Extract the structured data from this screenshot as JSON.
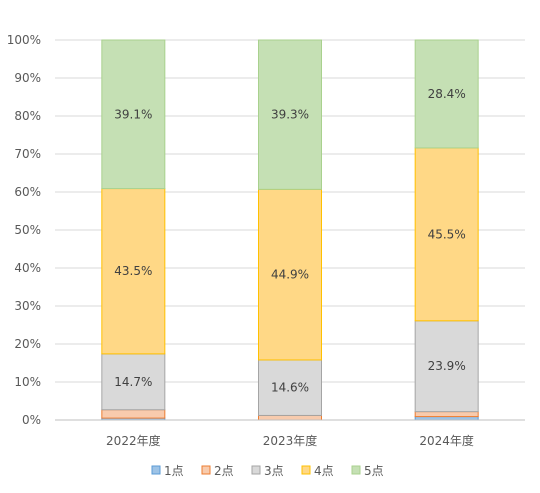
{
  "chart_data": {
    "type": "bar",
    "stacked": true,
    "percent": true,
    "categories": [
      "2022年度",
      "2023年度",
      "2024年度"
    ],
    "series": [
      {
        "name": "1点",
        "values": [
          0.5,
          0.0,
          0.9
        ],
        "labels": [
          "",
          "",
          ""
        ],
        "fill": "#9dc3e6",
        "stroke": "#5b9bd5"
      },
      {
        "name": "2点",
        "values": [
          2.2,
          1.2,
          1.3
        ],
        "labels": [
          "",
          "",
          ""
        ],
        "fill": "#f8cbad",
        "stroke": "#ed7d31"
      },
      {
        "name": "3点",
        "values": [
          14.7,
          14.6,
          23.9
        ],
        "labels": [
          "14.7%",
          "14.6%",
          "23.9%"
        ],
        "fill": "#d9d9d9",
        "stroke": "#a5a5a5"
      },
      {
        "name": "4点",
        "values": [
          43.5,
          44.9,
          45.5
        ],
        "labels": [
          "43.5%",
          "44.9%",
          "45.5%"
        ],
        "fill": "#ffd886",
        "stroke": "#ffc000"
      },
      {
        "name": "5点",
        "values": [
          39.1,
          39.3,
          28.4
        ],
        "labels": [
          "39.1%",
          "39.3%",
          "28.4%"
        ],
        "fill": "#c5e0b4",
        "stroke": "#a9d18e"
      }
    ],
    "yticks": [
      "0%",
      "10%",
      "20%",
      "30%",
      "40%",
      "50%",
      "60%",
      "70%",
      "80%",
      "90%",
      "100%"
    ],
    "ylim": [
      0,
      100
    ],
    "grid": true,
    "legend": "bottom",
    "gridColor": "#d9d9d9",
    "axisColor": "#bfbfbf"
  }
}
